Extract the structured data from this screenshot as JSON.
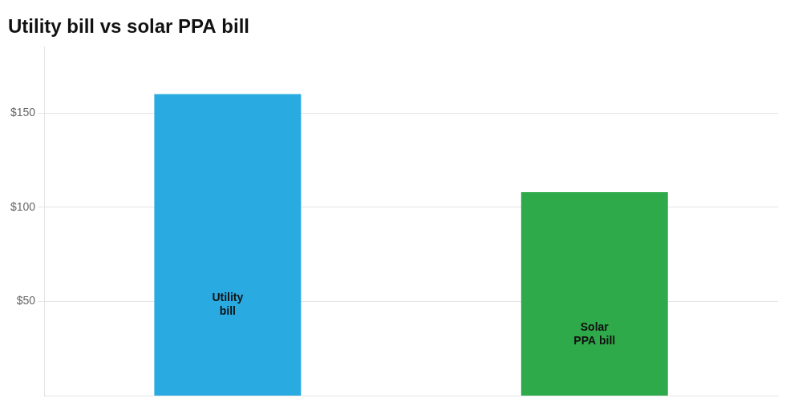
{
  "chart_data": {
    "type": "bar",
    "title": "Utility bill vs solar PPA bill",
    "categories": [
      "Utility\nbill",
      "Solar\nPPA bill"
    ],
    "values": [
      160,
      108
    ],
    "colors": [
      "#29ABE2",
      "#2EAA4A"
    ],
    "ylim": [
      0,
      185
    ],
    "yticks": [
      {
        "value": 50,
        "label": "$50"
      },
      {
        "value": 100,
        "label": "$100"
      },
      {
        "value": 150,
        "label": "$150"
      }
    ],
    "grid": true,
    "tick_labels": "y"
  }
}
